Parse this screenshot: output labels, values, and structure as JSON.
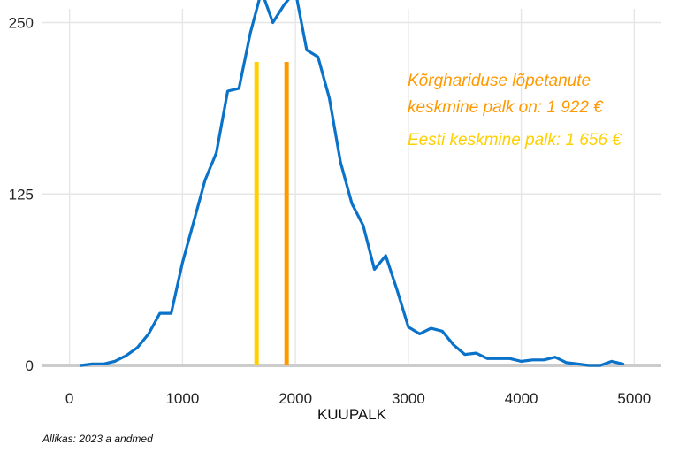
{
  "chart_data": {
    "type": "line",
    "xlabel": "KUUPALK",
    "ylabel": "",
    "xlim": [
      -240,
      5240
    ],
    "ylim": [
      0,
      260
    ],
    "x_ticks": [
      0,
      1000,
      2000,
      3000,
      4000,
      5000
    ],
    "y_ticks": [
      0,
      125,
      250
    ],
    "x_tick_labels": [
      "0",
      "1000",
      "2000",
      "3000",
      "4000",
      "5000"
    ],
    "y_tick_labels": [
      "0",
      "125",
      "250"
    ],
    "grid": true,
    "series": [
      {
        "color": "#0a72c8",
        "x": [
          100,
          200,
          300,
          400,
          500,
          600,
          700,
          800,
          900,
          1000,
          1100,
          1200,
          1300,
          1400,
          1500,
          1600,
          1700,
          1800,
          1900,
          2000,
          2100,
          2200,
          2300,
          2400,
          2500,
          2600,
          2700,
          2800,
          2900,
          3000,
          3100,
          3200,
          3300,
          3400,
          3500,
          3600,
          3700,
          3800,
          3900,
          4000,
          4100,
          4200,
          4300,
          4400,
          4500,
          4600,
          4700,
          4800,
          4900
        ],
        "y": [
          0,
          1,
          1,
          3,
          7,
          13,
          23,
          38,
          38,
          75,
          105,
          135,
          155,
          200,
          202,
          242,
          273,
          250,
          263,
          273,
          230,
          225,
          195,
          148,
          118,
          102,
          70,
          80,
          55,
          28,
          23,
          27,
          25,
          15,
          8,
          9,
          5,
          5,
          5,
          3,
          4,
          4,
          6,
          2,
          1,
          0,
          0,
          3,
          1
        ]
      }
    ],
    "vlines": [
      {
        "x": 1656,
        "color": "#ffd000"
      },
      {
        "x": 1922,
        "color": "#ff9900"
      }
    ],
    "annotations": [
      {
        "lines": [
          "Kõrghariduse lõpetanute",
          " keskmine palk on: 1 922 €"
        ],
        "color": "#ff9900"
      },
      {
        "lines": [
          "Eesti keskmine palk: 1 656 €"
        ],
        "color": "#ffd000"
      }
    ],
    "source": "Allikas: 2023 a andmed"
  }
}
